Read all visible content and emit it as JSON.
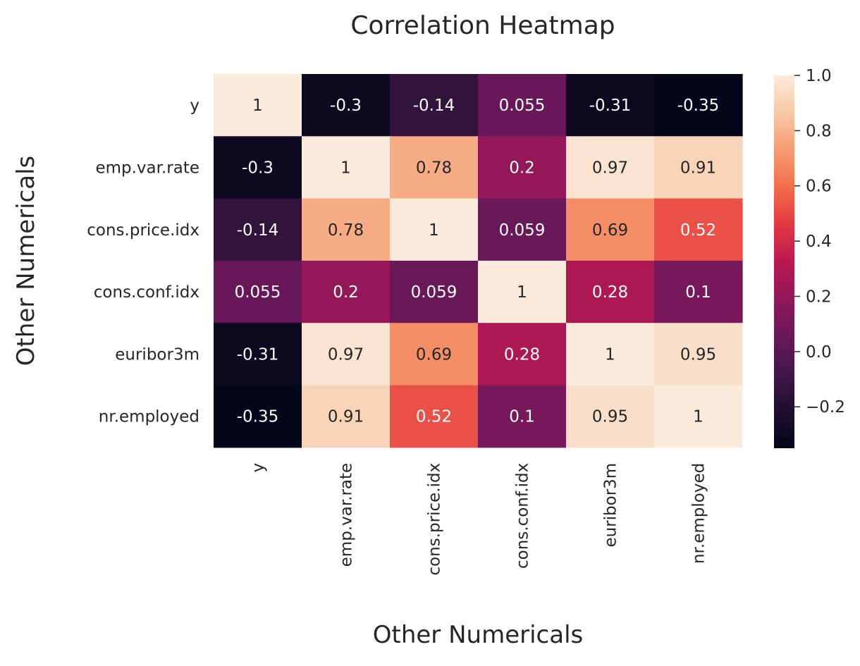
{
  "chart_data": {
    "type": "heatmap",
    "title": "Correlation Heatmap",
    "xlabel": "Other Numericals",
    "ylabel": "Other Numericals",
    "rows": [
      "y",
      "emp.var.rate",
      "cons.price.idx",
      "cons.conf.idx",
      "euribor3m",
      "nr.employed"
    ],
    "columns": [
      "y",
      "emp.var.rate",
      "cons.price.idx",
      "cons.conf.idx",
      "euribor3m",
      "nr.employed"
    ],
    "values": [
      [
        1,
        -0.3,
        -0.14,
        0.055,
        -0.31,
        -0.35
      ],
      [
        -0.3,
        1,
        0.78,
        0.2,
        0.97,
        0.91
      ],
      [
        -0.14,
        0.78,
        1,
        0.059,
        0.69,
        0.52
      ],
      [
        0.055,
        0.2,
        0.059,
        1,
        0.28,
        0.1
      ],
      [
        -0.31,
        0.97,
        0.69,
        0.28,
        1,
        0.95
      ],
      [
        -0.35,
        0.91,
        0.52,
        0.1,
        0.95,
        1
      ]
    ],
    "annotations": [
      [
        "1",
        "-0.3",
        "-0.14",
        "0.055",
        "-0.31",
        "-0.35"
      ],
      [
        "-0.3",
        "1",
        "0.78",
        "0.2",
        "0.97",
        "0.91"
      ],
      [
        "-0.14",
        "0.78",
        "1",
        "0.059",
        "0.69",
        "0.52"
      ],
      [
        "0.055",
        "0.2",
        "0.059",
        "1",
        "0.28",
        "0.1"
      ],
      [
        "-0.31",
        "0.97",
        "0.69",
        "0.28",
        "1",
        "0.95"
      ],
      [
        "-0.35",
        "0.91",
        "0.52",
        "0.1",
        "0.95",
        "1"
      ]
    ],
    "colormap": "rocket",
    "colorbar": {
      "vmin": -0.35,
      "vmax": 1.0,
      "ticks": [
        -0.2,
        0.0,
        0.2,
        0.4,
        0.6,
        0.8,
        1.0
      ],
      "tick_labels": [
        "−0.2",
        "0.0",
        "0.2",
        "0.4",
        "0.6",
        "0.8",
        "1.0"
      ],
      "placement": "right"
    },
    "x_tick_rotation": "vertical",
    "grid": false
  }
}
